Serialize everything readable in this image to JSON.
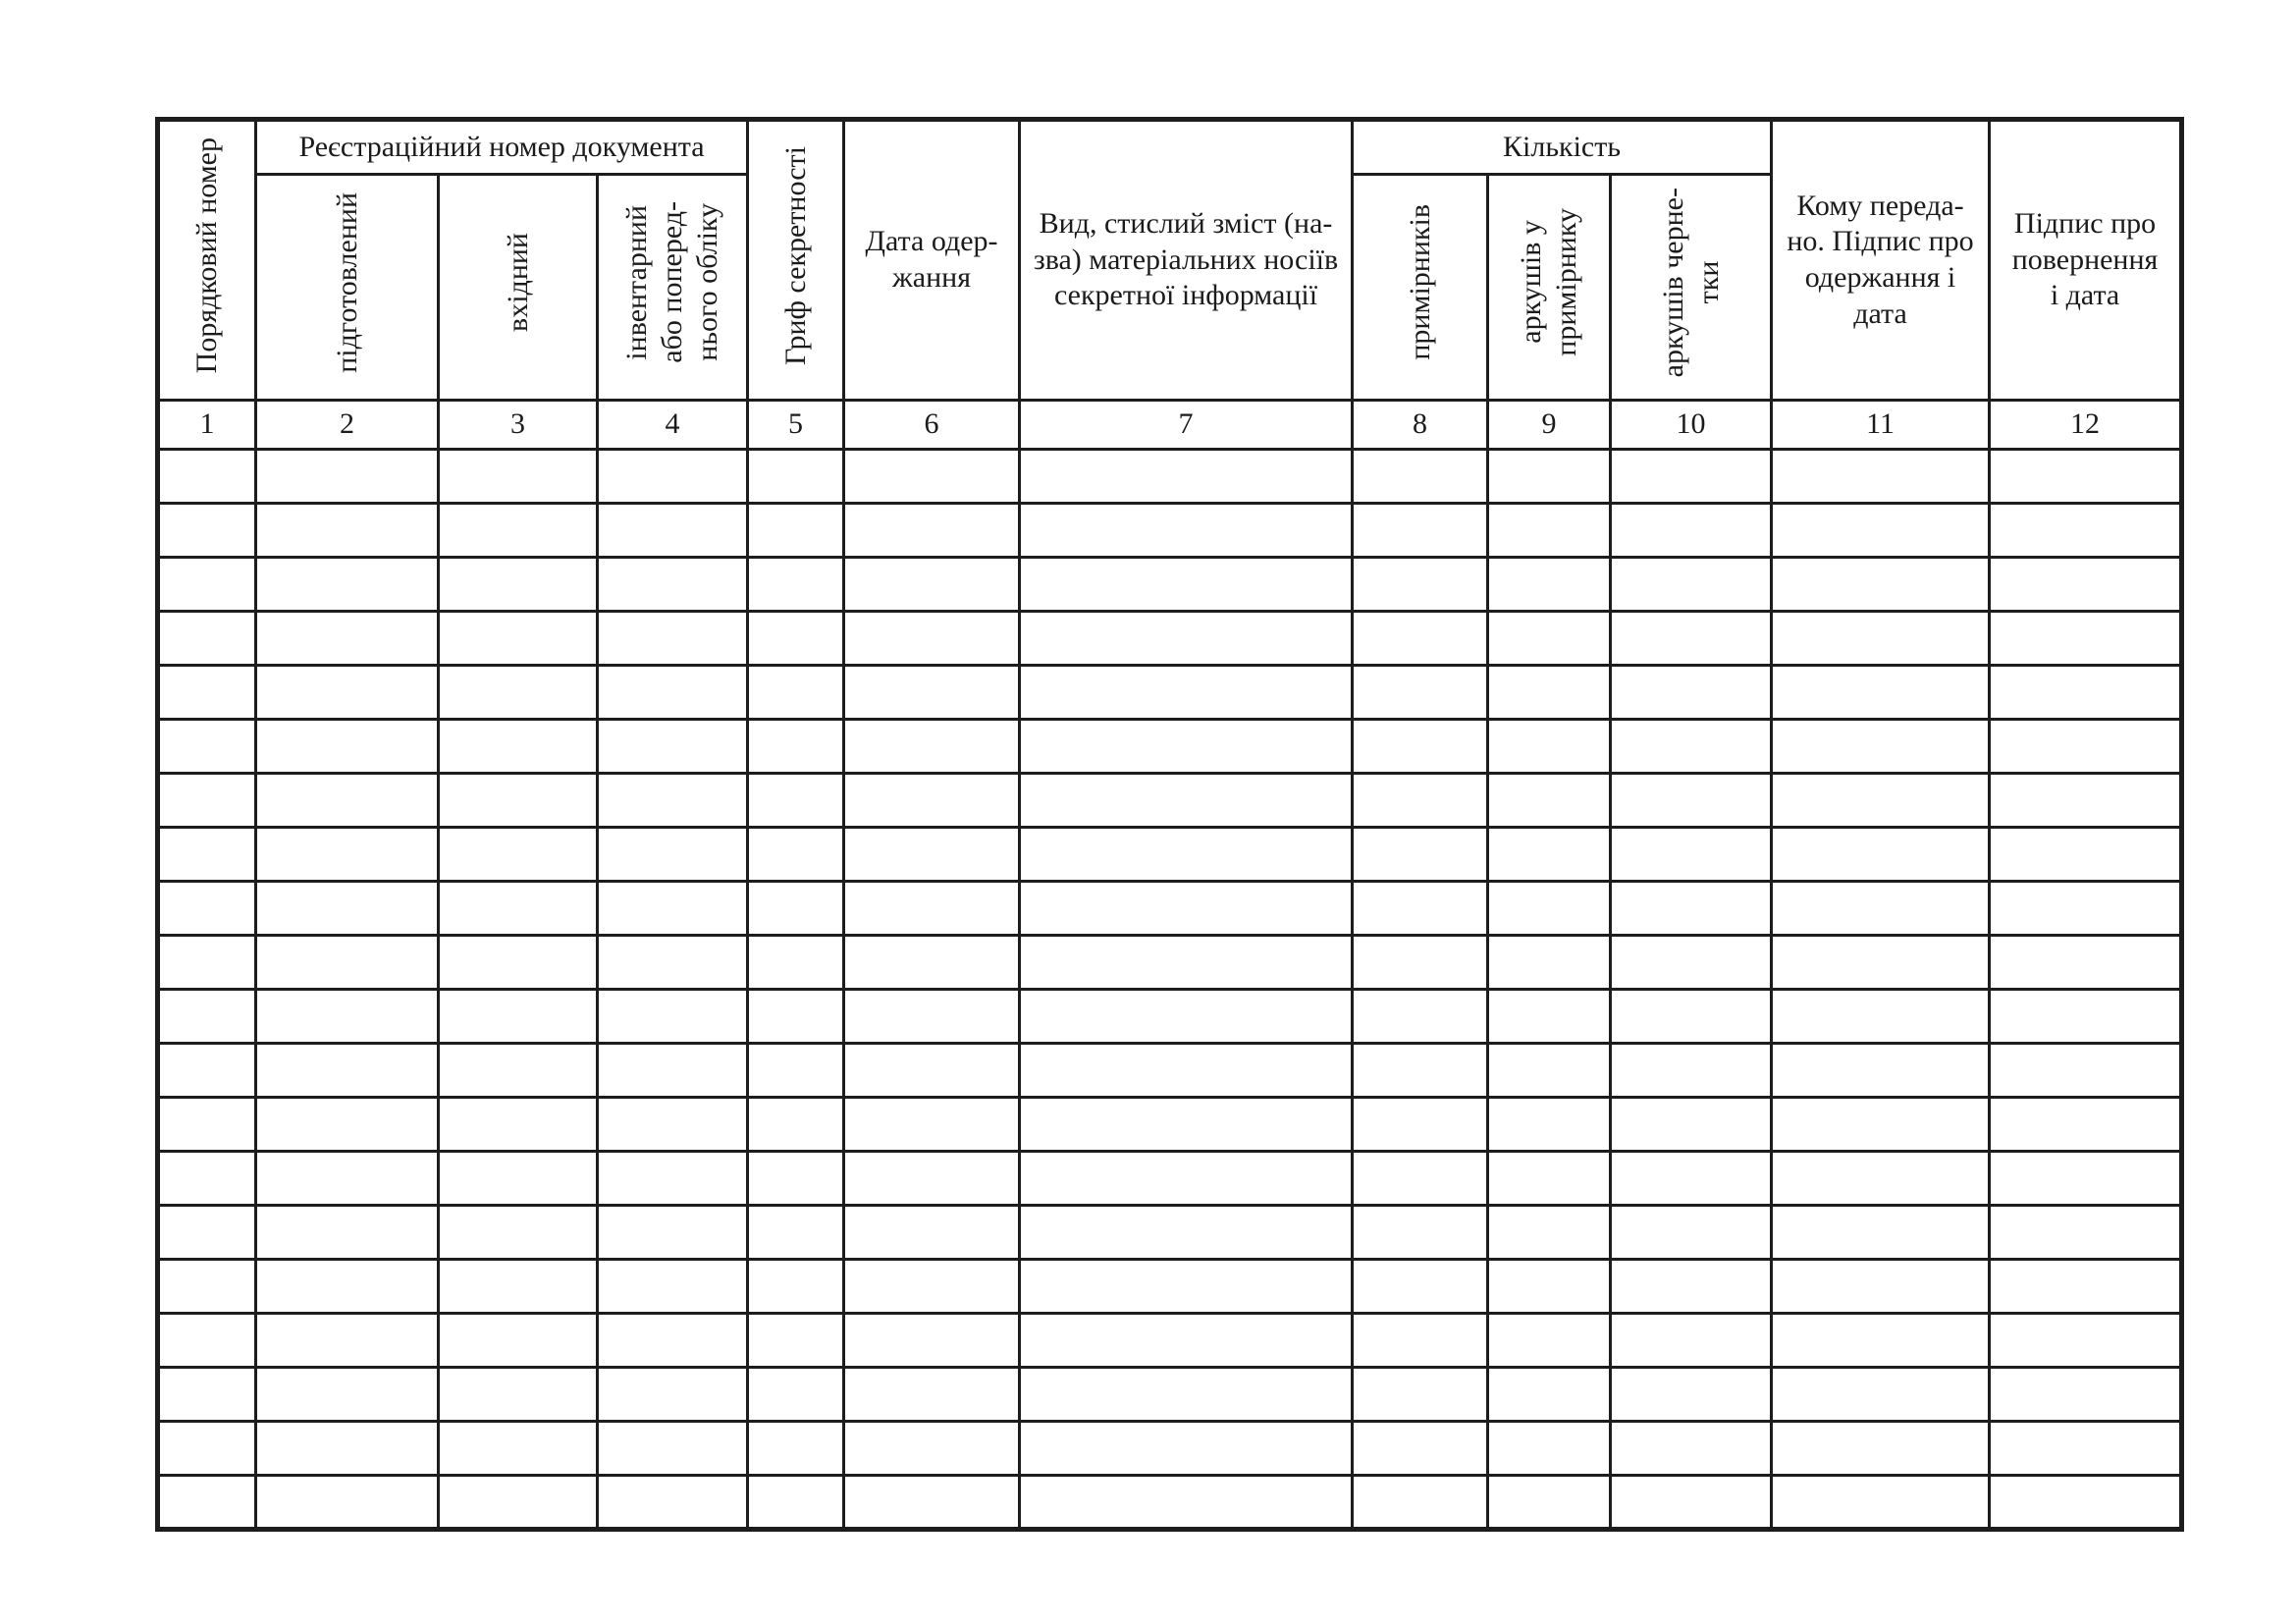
{
  "page": {
    "background_color": "#ffffff",
    "line_color": "#1d1d1d"
  },
  "table": {
    "group_headers": [
      {
        "label": "Реєстраційний номер документа",
        "spans_columns": "2-4"
      },
      {
        "label": "Кількість",
        "spans_columns": "8-10"
      }
    ],
    "columns": [
      {
        "num": "1",
        "label": "Порядковий номер",
        "orientation": "vertical"
      },
      {
        "num": "2",
        "label": "підготовлений",
        "orientation": "vertical",
        "group": "Реєстраційний номер документа"
      },
      {
        "num": "3",
        "label": "вхідний",
        "orientation": "vertical",
        "group": "Реєстраційний номер документа"
      },
      {
        "num": "4",
        "label": "інвентарний\nабо поперед-\nнього обліку",
        "orientation": "vertical",
        "group": "Реєстраційний номер документа"
      },
      {
        "num": "5",
        "label": "Гриф секретності",
        "orientation": "vertical"
      },
      {
        "num": "6",
        "label": "Дата одер-\nжання",
        "orientation": "horizontal"
      },
      {
        "num": "7",
        "label": "Вид, стислий зміст (на-\nзва) матеріальних носіїв\nсекретної інформації",
        "orientation": "horizontal"
      },
      {
        "num": "8",
        "label": "примірників",
        "orientation": "vertical",
        "group": "Кількість"
      },
      {
        "num": "9",
        "label": "аркушів у\nпримірнику",
        "orientation": "vertical",
        "group": "Кількість"
      },
      {
        "num": "10",
        "label": "аркушів черне-\nтки",
        "orientation": "vertical",
        "group": "Кількість"
      },
      {
        "num": "11",
        "label": "Кому переда-\nно. Підпис про\nодержання і\nдата",
        "orientation": "horizontal"
      },
      {
        "num": "12",
        "label": "Підпис про\nповернення\nі дата",
        "orientation": "horizontal"
      }
    ],
    "empty_row_count": 20,
    "empty_cell_value": ""
  }
}
